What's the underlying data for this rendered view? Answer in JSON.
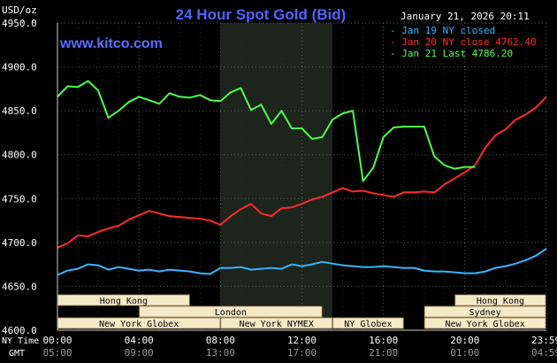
{
  "chart_data": {
    "type": "line",
    "title": "24 Hour Spot Gold (Bid)",
    "site": "www.kitco.com",
    "date_label": "January 21, 2026 20:11",
    "unit_label": "USD/oz",
    "ylim": [
      4600,
      4950
    ],
    "yticks": [
      "4950.0",
      "4900.0",
      "4850.0",
      "4800.0",
      "4750.0",
      "4700.0",
      "4650.0",
      "4600.0"
    ],
    "ytick_values": [
      4950,
      4900,
      4850,
      4800,
      4750,
      4700,
      4650,
      4600
    ],
    "xlim": [
      0,
      24
    ],
    "xticks": [
      {
        "x": 0,
        "ny": "00:00",
        "gmt": "05:00"
      },
      {
        "x": 4,
        "ny": "04:00",
        "gmt": "09:00"
      },
      {
        "x": 8,
        "ny": "08:00",
        "gmt": "13:00"
      },
      {
        "x": 12,
        "ny": "12:00",
        "gmt": "17:00"
      },
      {
        "x": 16,
        "ny": "16:00",
        "gmt": "21:00"
      },
      {
        "x": 20,
        "ny": "20:00",
        "gmt": "01:00"
      },
      {
        "x": 23.98,
        "ny": "23:59",
        "gmt": "04:59"
      }
    ],
    "ny_time_label": "NY Time",
    "gmt_label": "GMT",
    "shaded_hours": [
      8,
      13.5
    ],
    "legend": [
      {
        "label": "Jan 19 NY closed",
        "color": "#33b6ff"
      },
      {
        "label": "Jan 20 NY close 4762.40",
        "color": "#ff2a2a"
      },
      {
        "label": "Jan 21 Last 4786.20",
        "color": "#4dff4d"
      }
    ],
    "series": [
      {
        "name": "Jan 19",
        "color": "#33b6ff",
        "x": [
          0,
          0.5,
          1,
          1.5,
          2,
          2.5,
          3,
          3.5,
          4,
          4.5,
          5,
          5.5,
          6,
          6.5,
          7,
          7.5,
          8,
          8.5,
          9,
          9.5,
          10,
          10.5,
          11,
          11.5,
          12,
          12.5,
          13,
          13.5,
          14,
          14.5,
          15,
          15.5,
          16,
          16.5,
          17,
          17.5,
          18,
          18.5,
          19,
          19.5,
          20,
          20.5,
          21,
          21.5,
          22,
          22.5,
          23,
          23.5,
          24
        ],
        "values": [
          4663,
          4668,
          4670,
          4675,
          4674,
          4669,
          4672,
          4670,
          4668,
          4669,
          4667,
          4669,
          4668,
          4667,
          4665,
          4664,
          4671,
          4671,
          4672,
          4669,
          4670,
          4671,
          4670,
          4675,
          4673,
          4675,
          4678,
          4676,
          4674,
          4673,
          4672,
          4672,
          4673,
          4672,
          4671,
          4671,
          4668,
          4667,
          4667,
          4666,
          4665,
          4665,
          4667,
          4671,
          4673,
          4676,
          4680,
          4685,
          4693
        ]
      },
      {
        "name": "Jan 20",
        "color": "#ff2a2a",
        "x": [
          0,
          0.5,
          1,
          1.5,
          2,
          2.5,
          3,
          3.5,
          4,
          4.5,
          5,
          5.5,
          6,
          6.5,
          7,
          7.5,
          8,
          8.5,
          9,
          9.5,
          10,
          10.5,
          11,
          11.5,
          12,
          12.5,
          13,
          13.5,
          14,
          14.5,
          15,
          15.5,
          16,
          16.5,
          17,
          17.5,
          18,
          18.5,
          19,
          19.5,
          20,
          20.5,
          21,
          21.5,
          22,
          22.5,
          23,
          23.5,
          24
        ],
        "values": [
          4694,
          4699,
          4708,
          4707,
          4712,
          4716,
          4719,
          4726,
          4731,
          4736,
          4733,
          4730,
          4729,
          4728,
          4727,
          4725,
          4720,
          4730,
          4738,
          4744,
          4733,
          4730,
          4739,
          4740,
          4744,
          4749,
          4752,
          4757,
          4762,
          4758,
          4759,
          4756,
          4754,
          4752,
          4757,
          4757,
          4758,
          4757,
          4766,
          4773,
          4780,
          4788,
          4808,
          4822,
          4829,
          4840,
          4846,
          4854,
          4866
        ]
      },
      {
        "name": "Jan 21",
        "color": "#4dff4d",
        "x": [
          0,
          0.5,
          1,
          1.5,
          2,
          2.5,
          3,
          3.5,
          4,
          4.5,
          5,
          5.5,
          6,
          6.5,
          7,
          7.5,
          8,
          8.5,
          9,
          9.5,
          10,
          10.5,
          11,
          11.5,
          12,
          12.5,
          13,
          13.5,
          14,
          14.5,
          15,
          15.5,
          16,
          16.5,
          17,
          17.5,
          18,
          18.5,
          19,
          19.5,
          20,
          20.5
        ],
        "values": [
          4866,
          4878,
          4877,
          4884,
          4873,
          4842,
          4850,
          4860,
          4866,
          4862,
          4858,
          4870,
          4866,
          4865,
          4868,
          4862,
          4861,
          4871,
          4876,
          4851,
          4857,
          4835,
          4850,
          4830,
          4830,
          4818,
          4820,
          4840,
          4847,
          4850,
          4770,
          4785,
          4820,
          4831,
          4832,
          4832,
          4832,
          4798,
          4788,
          4784,
          4786,
          4786
        ]
      }
    ],
    "sessions": [
      {
        "label": "Hong Kong",
        "start": 0,
        "end": 6.5,
        "row": 0
      },
      {
        "label": "Hong Kong",
        "start": 19.5,
        "end": 23.98,
        "row": 0
      },
      {
        "label": "London",
        "start": 4,
        "end": 13,
        "row": 1
      },
      {
        "label": "Sydney",
        "start": 18,
        "end": 23.98,
        "row": 1
      },
      {
        "label": "New York Globex",
        "start": 0,
        "end": 8,
        "row": 2
      },
      {
        "label": "New York NYMEX",
        "start": 8,
        "end": 13.5,
        "row": 2
      },
      {
        "label": "NY Globex",
        "start": 13.5,
        "end": 17,
        "row": 2
      },
      {
        "label": "New York Globex",
        "start": 18,
        "end": 23.98,
        "row": 2
      }
    ]
  }
}
